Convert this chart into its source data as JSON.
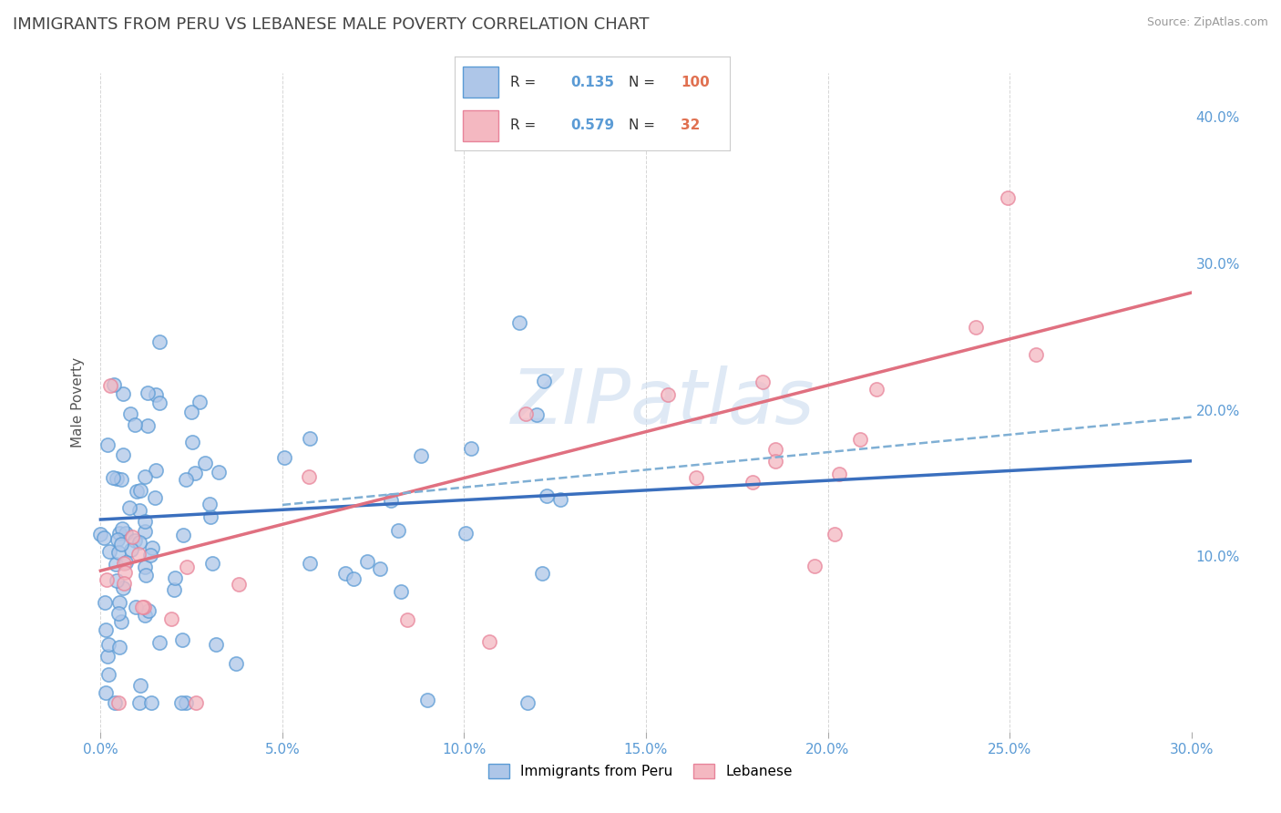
{
  "title": "IMMIGRANTS FROM PERU VS LEBANESE MALE POVERTY CORRELATION CHART",
  "source_text": "Source: ZipAtlas.com",
  "ylabel": "Male Poverty",
  "x_tick_labels": [
    "0.0%",
    "5.0%",
    "10.0%",
    "15.0%",
    "20.0%",
    "25.0%",
    "30.0%"
  ],
  "x_tick_values": [
    0.0,
    5.0,
    10.0,
    15.0,
    20.0,
    25.0,
    30.0
  ],
  "y_tick_labels": [
    "10.0%",
    "20.0%",
    "30.0%",
    "40.0%"
  ],
  "y_tick_values": [
    10.0,
    20.0,
    30.0,
    40.0
  ],
  "xlim": [
    -0.3,
    30.0
  ],
  "ylim": [
    -2.0,
    43.0
  ],
  "watermark": "ZIPatlas",
  "peru_color": "#aec6e8",
  "lebanese_color": "#f4b8c1",
  "peru_edge_color": "#5b9bd5",
  "lebanese_edge_color": "#e8849a",
  "peru_line_color": "#3a6fbe",
  "lebanese_line_color": "#e07080",
  "dashed_line_color": "#7fafd4",
  "R_peru": 0.135,
  "N_peru": 100,
  "R_lebanese": 0.579,
  "N_lebanese": 32,
  "legend_label_peru": "Immigrants from Peru",
  "legend_label_lebanese": "Lebanese",
  "background_color": "#ffffff",
  "plot_bg_color": "#ffffff",
  "grid_color": "#cccccc",
  "title_fontsize": 13,
  "axis_label_fontsize": 11,
  "tick_fontsize": 11,
  "peru_trend_x0": 0.0,
  "peru_trend_y0": 12.5,
  "peru_trend_x1": 30.0,
  "peru_trend_y1": 16.5,
  "leb_trend_x0": 0.0,
  "leb_trend_y0": 9.0,
  "leb_trend_x1": 30.0,
  "leb_trend_y1": 28.0,
  "dash_trend_x0": 5.0,
  "dash_trend_y0": 13.5,
  "dash_trend_x1": 30.0,
  "dash_trend_y1": 19.5
}
